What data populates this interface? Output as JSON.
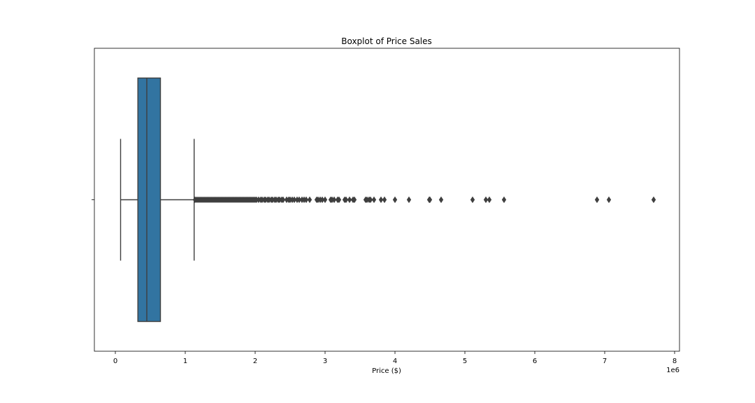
{
  "chart_data": {
    "type": "boxplot",
    "title": "Boxplot of Price Sales",
    "xlabel": "Price ($)",
    "ylabel": "",
    "x_scale_label": "1e6",
    "xlim": [
      -0.3,
      8.07
    ],
    "xticks": [
      0,
      1,
      2,
      3,
      4,
      5,
      6,
      7,
      8
    ],
    "xtick_labels": [
      "0",
      "1",
      "2",
      "3",
      "4",
      "5",
      "6",
      "7",
      "8"
    ],
    "grid": false,
    "box_color": "#3274a1",
    "line_color": "#3f3f3f",
    "box": {
      "whisker_low": 0.075,
      "q1": 0.322,
      "median": 0.45,
      "q3": 0.645,
      "whisker_high": 1.127
    },
    "outliers": [
      1.14,
      1.16,
      1.18,
      1.2,
      1.22,
      1.24,
      1.26,
      1.28,
      1.3,
      1.32,
      1.34,
      1.36,
      1.38,
      1.4,
      1.42,
      1.44,
      1.46,
      1.48,
      1.5,
      1.52,
      1.54,
      1.56,
      1.58,
      1.6,
      1.62,
      1.64,
      1.66,
      1.68,
      1.7,
      1.72,
      1.74,
      1.76,
      1.78,
      1.8,
      1.82,
      1.84,
      1.86,
      1.88,
      1.9,
      1.92,
      1.94,
      1.96,
      1.98,
      2.0,
      2.02,
      2.05,
      2.08,
      2.1,
      2.13,
      2.15,
      2.18,
      2.2,
      2.23,
      2.25,
      2.28,
      2.3,
      2.33,
      2.35,
      2.38,
      2.4,
      2.45,
      2.48,
      2.5,
      2.53,
      2.56,
      2.6,
      2.63,
      2.67,
      2.7,
      2.73,
      2.78,
      2.88,
      2.9,
      2.93,
      2.96,
      3.0,
      3.08,
      3.1,
      3.13,
      3.18,
      3.2,
      3.28,
      3.3,
      3.35,
      3.4,
      3.42,
      3.58,
      3.6,
      3.63,
      3.65,
      3.7,
      3.8,
      3.85,
      4.0,
      4.2,
      4.49,
      4.5,
      4.66,
      5.11,
      5.3,
      5.35,
      5.56,
      6.89,
      7.06,
      7.7
    ]
  }
}
